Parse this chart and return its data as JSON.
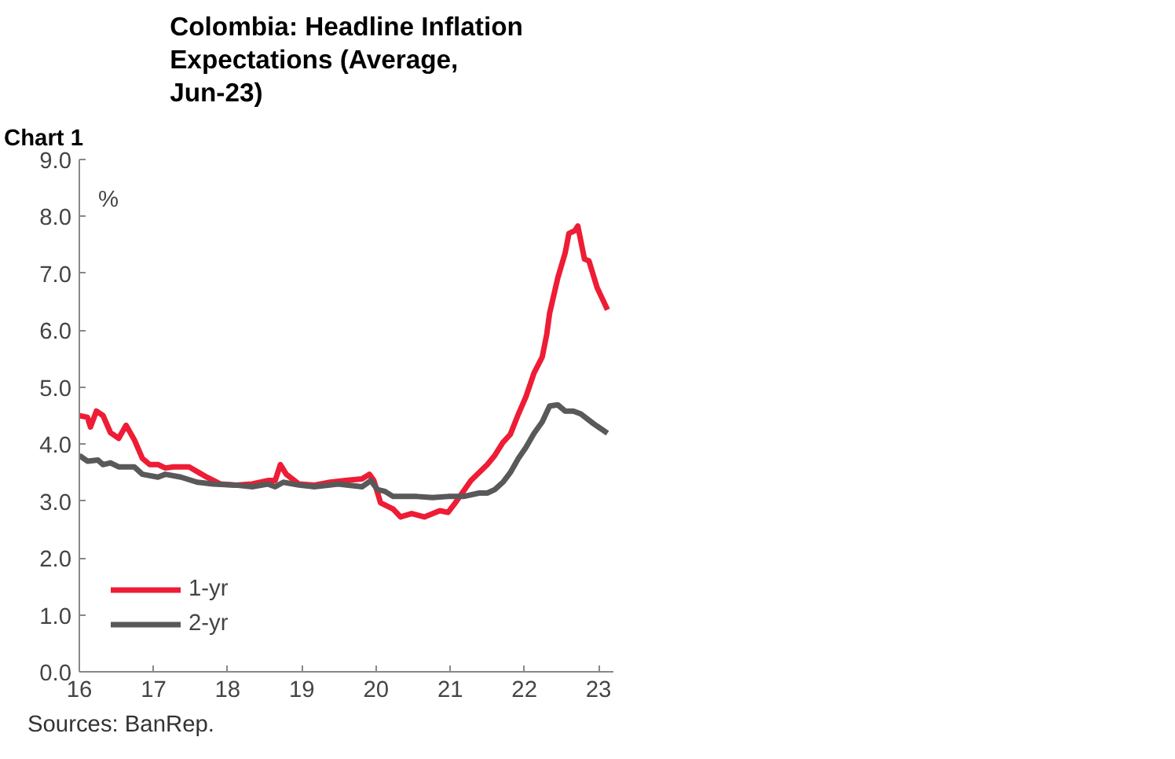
{
  "chart_data": {
    "type": "line",
    "title": "Colombia: Headline Inflation Expectations (Average, Jun-23)",
    "ylabel": "%",
    "annotations": [
      "Chart 1",
      "Sources: BanRep."
    ],
    "xlim": [
      16,
      23.2
    ],
    "xticks": [
      16,
      17,
      18,
      19,
      20,
      21,
      22,
      23
    ],
    "ylim": [
      0,
      9
    ],
    "yticks": [
      {
        "value": 0,
        "label": "0.0"
      },
      {
        "value": 1,
        "label": "1.0"
      },
      {
        "value": 2,
        "label": "2.0"
      },
      {
        "value": 3,
        "label": "3.0"
      },
      {
        "value": 4,
        "label": "4.0"
      },
      {
        "value": 5,
        "label": "5.0"
      },
      {
        "value": 6,
        "label": "6.0"
      },
      {
        "value": 7,
        "label": "7.0"
      },
      {
        "value": 8,
        "label": "8.0"
      },
      {
        "value": 9,
        "label": "9.0"
      }
    ],
    "grid": false,
    "legend": "bottom left",
    "marker": "none",
    "line_style": "solid",
    "series": [
      {
        "name": "1-yr",
        "color": "#ee1c35",
        "x": [
          16.0,
          16.11,
          16.15,
          16.23,
          16.32,
          16.42,
          16.53,
          16.63,
          16.74,
          16.85,
          16.95,
          17.06,
          17.16,
          17.27,
          17.48,
          17.69,
          17.9,
          18.11,
          18.33,
          18.54,
          18.64,
          18.71,
          18.79,
          18.96,
          19.17,
          19.38,
          19.59,
          19.81,
          19.91,
          19.97,
          20.06,
          20.23,
          20.33,
          20.48,
          20.65,
          20.86,
          20.97,
          21.07,
          21.28,
          21.5,
          21.6,
          21.71,
          21.81,
          21.92,
          22.02,
          22.13,
          22.24,
          22.3,
          22.34,
          22.45,
          22.55,
          22.6,
          22.68,
          22.72,
          22.81,
          22.87,
          22.98,
          23.12
        ],
        "values": [
          4.5,
          4.47,
          4.3,
          4.58,
          4.5,
          4.2,
          4.1,
          4.33,
          4.08,
          3.75,
          3.64,
          3.64,
          3.58,
          3.6,
          3.6,
          3.44,
          3.3,
          3.28,
          3.3,
          3.36,
          3.36,
          3.64,
          3.47,
          3.3,
          3.28,
          3.33,
          3.36,
          3.39,
          3.47,
          3.36,
          2.97,
          2.86,
          2.72,
          2.78,
          2.72,
          2.83,
          2.8,
          2.97,
          3.36,
          3.64,
          3.8,
          4.03,
          4.17,
          4.53,
          4.83,
          5.25,
          5.53,
          5.92,
          6.3,
          6.92,
          7.36,
          7.7,
          7.75,
          7.83,
          7.25,
          7.22,
          6.75,
          6.36
        ]
      },
      {
        "name": "2-yr",
        "color": "#595959",
        "x": [
          16.0,
          16.11,
          16.25,
          16.32,
          16.42,
          16.53,
          16.74,
          16.85,
          17.06,
          17.16,
          17.37,
          17.59,
          17.8,
          18.11,
          18.33,
          18.54,
          18.64,
          18.75,
          18.96,
          19.17,
          19.49,
          19.81,
          19.93,
          20.02,
          20.12,
          20.23,
          20.33,
          20.55,
          20.76,
          20.97,
          21.18,
          21.39,
          21.5,
          21.6,
          21.71,
          21.81,
          21.92,
          22.02,
          22.13,
          22.24,
          22.34,
          22.45,
          22.55,
          22.66,
          22.76,
          22.93,
          23.12
        ],
        "values": [
          3.8,
          3.7,
          3.72,
          3.64,
          3.67,
          3.6,
          3.6,
          3.47,
          3.42,
          3.47,
          3.42,
          3.33,
          3.3,
          3.28,
          3.25,
          3.3,
          3.25,
          3.33,
          3.28,
          3.25,
          3.3,
          3.25,
          3.36,
          3.2,
          3.17,
          3.08,
          3.08,
          3.08,
          3.06,
          3.08,
          3.08,
          3.14,
          3.14,
          3.2,
          3.33,
          3.5,
          3.75,
          3.94,
          4.19,
          4.39,
          4.67,
          4.69,
          4.58,
          4.58,
          4.53,
          4.36,
          4.19
        ]
      }
    ]
  }
}
